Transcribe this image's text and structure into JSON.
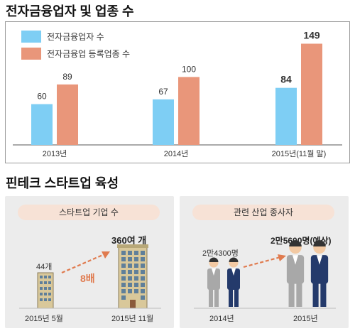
{
  "section1": {
    "title": "전자금융업자 및 업종 수"
  },
  "chart_data": {
    "type": "bar",
    "title": "전자금융업자 및 업종 수",
    "categories": [
      "2013년",
      "2014년",
      "2015년(11월 말)"
    ],
    "series": [
      {
        "name": "전자금융업자 수",
        "values": [
          60,
          67,
          84
        ],
        "color": "#7ecef4"
      },
      {
        "name": "전자금융업 등록업종 수",
        "values": [
          89,
          100,
          149
        ],
        "color": "#e9967a"
      }
    ],
    "ylim": [
      0,
      160
    ],
    "legend": "top-left",
    "grid": false
  },
  "section2": {
    "title": "핀테크 스타트업 육성",
    "startup": {
      "pill": "스타트업 기업 수",
      "before_label": "44개",
      "after_label": "360여 개",
      "growth": "8배",
      "x_labels": [
        "2015년 5월",
        "2015년 11월"
      ]
    },
    "workers": {
      "pill": "관련 산업 종사자",
      "before_label": "2만4300명",
      "after_label": "2만5600명(예상)",
      "x_labels": [
        "2014년",
        "2015년"
      ]
    },
    "colors": {
      "accent": "#e07b4f",
      "building": "#d9c89a",
      "gray_suit": "#a8a8a8",
      "navy_suit": "#243a6b"
    }
  }
}
